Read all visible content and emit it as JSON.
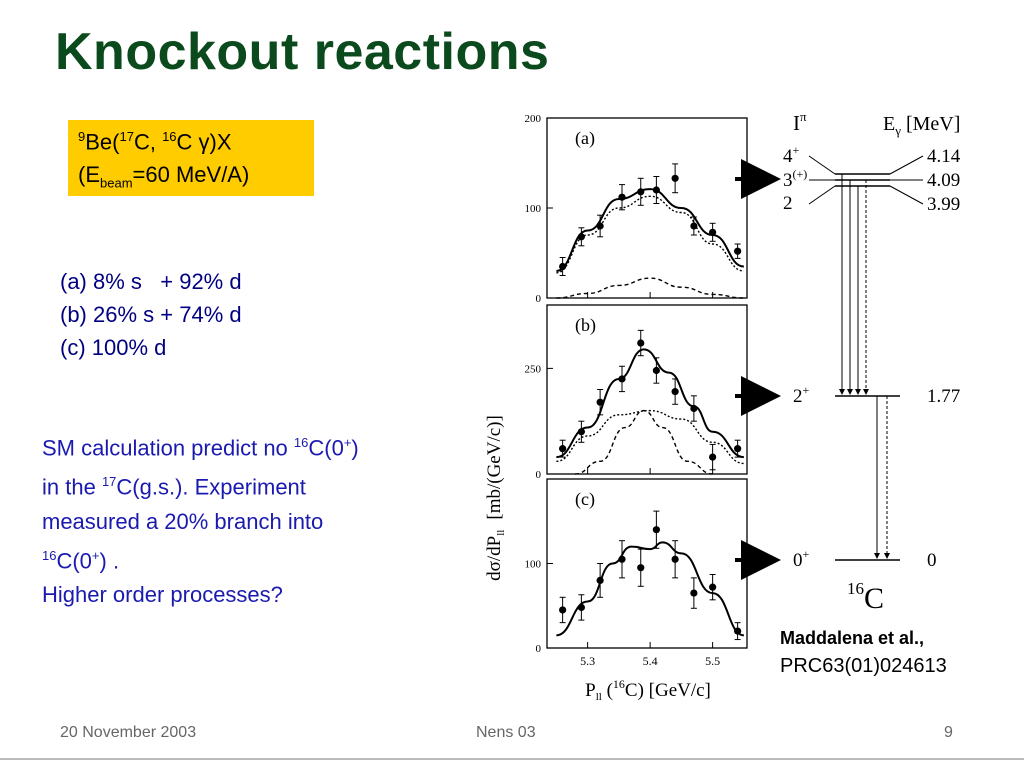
{
  "slide": {
    "title": "Knockout reactions",
    "reaction": {
      "be_mass": "9",
      "be": "Be(",
      "c17_mass": "17",
      "c17": "C, ",
      "c16_mass": "16",
      "c16": "C ",
      "gamma": "γ",
      "close": ")X",
      "ebeam_open": "(E",
      "ebeam_sub": "beam",
      "ebeam_value": "=60 MeV/A)"
    },
    "fractions": [
      "(a) 8% s   + 92% d",
      "(b) 26% s + 74% d",
      "(c) 100% d"
    ],
    "sm_text": {
      "line1_a": "SM calculation predict no ",
      "line1_sup": "16",
      "line1_b": "C(0",
      "line1_sup2": "+",
      "line1_c": ")",
      "line2_a": "in the ",
      "line2_sup": "17",
      "line2_b": "C(g.s.). Experiment",
      "line3": "measured a 20% branch into",
      "line4_sup": "16",
      "line4_a": "C(0",
      "line4_sup2": "+",
      "line4_b": ") .",
      "line5": "Higher order processes?"
    },
    "reference": {
      "author": "Maddalena et al.,",
      "journal": "PRC63(01)024613"
    },
    "footer": {
      "date": "20 November 2003",
      "event": "Nens 03",
      "page": "9"
    }
  },
  "chart_data": [
    {
      "type": "scatter",
      "panel": "(a)",
      "x": [
        5.26,
        5.29,
        5.32,
        5.355,
        5.385,
        5.41,
        5.44,
        5.47,
        5.5,
        5.54
      ],
      "y": [
        35,
        68,
        80,
        112,
        118,
        120,
        133,
        80,
        73,
        52
      ],
      "yerr": [
        10,
        10,
        12,
        14,
        15,
        15,
        16,
        10,
        10,
        8
      ],
      "curves": {
        "total": [
          [
            5.25,
            30
          ],
          [
            5.3,
            75
          ],
          [
            5.35,
            110
          ],
          [
            5.4,
            121
          ],
          [
            5.45,
            100
          ],
          [
            5.5,
            70
          ],
          [
            5.55,
            35
          ]
        ],
        "d": [
          [
            5.25,
            28
          ],
          [
            5.3,
            70
          ],
          [
            5.35,
            100
          ],
          [
            5.4,
            113
          ],
          [
            5.45,
            95
          ],
          [
            5.5,
            60
          ],
          [
            5.55,
            30
          ]
        ],
        "s": [
          [
            5.25,
            0
          ],
          [
            5.3,
            5
          ],
          [
            5.35,
            14
          ],
          [
            5.4,
            22
          ],
          [
            5.45,
            12
          ],
          [
            5.5,
            4
          ],
          [
            5.55,
            0
          ]
        ]
      },
      "ylim": [
        0,
        200
      ],
      "yticks": [
        "200",
        "100",
        "0"
      ],
      "ytick_values": [
        200,
        100,
        0
      ]
    },
    {
      "type": "scatter",
      "panel": "(b)",
      "x": [
        5.26,
        5.29,
        5.32,
        5.355,
        5.385,
        5.41,
        5.44,
        5.47,
        5.5,
        5.54
      ],
      "y": [
        60,
        100,
        170,
        225,
        310,
        245,
        195,
        155,
        40,
        60
      ],
      "yerr": [
        20,
        25,
        30,
        30,
        30,
        30,
        30,
        30,
        30,
        20
      ],
      "curves": {
        "total": [
          [
            5.25,
            40
          ],
          [
            5.3,
            110
          ],
          [
            5.35,
            225
          ],
          [
            5.39,
            295
          ],
          [
            5.43,
            240
          ],
          [
            5.47,
            160
          ],
          [
            5.5,
            100
          ],
          [
            5.55,
            40
          ]
        ],
        "d": [
          [
            5.25,
            30
          ],
          [
            5.3,
            90
          ],
          [
            5.35,
            140
          ],
          [
            5.4,
            150
          ],
          [
            5.45,
            130
          ],
          [
            5.5,
            75
          ],
          [
            5.55,
            25
          ]
        ],
        "s": [
          [
            5.28,
            0
          ],
          [
            5.32,
            30
          ],
          [
            5.36,
            110
          ],
          [
            5.39,
            150
          ],
          [
            5.42,
            110
          ],
          [
            5.46,
            30
          ],
          [
            5.5,
            0
          ]
        ]
      },
      "ylim": [
        0,
        400
      ],
      "yticks": [
        "250",
        "0"
      ],
      "ytick_values": [
        250,
        0
      ]
    },
    {
      "type": "scatter",
      "panel": "(c)",
      "x": [
        5.26,
        5.29,
        5.32,
        5.355,
        5.385,
        5.41,
        5.44,
        5.47,
        5.5,
        5.54
      ],
      "y": [
        45,
        48,
        80,
        105,
        95,
        140,
        105,
        65,
        72,
        20
      ],
      "yerr": [
        15,
        15,
        20,
        22,
        22,
        22,
        22,
        18,
        15,
        10
      ],
      "curves": {
        "total": [
          [
            5.25,
            15
          ],
          [
            5.3,
            55
          ],
          [
            5.34,
            100
          ],
          [
            5.37,
            120
          ],
          [
            5.4,
            117
          ],
          [
            5.42,
            125
          ],
          [
            5.45,
            112
          ],
          [
            5.5,
            65
          ],
          [
            5.55,
            15
          ]
        ]
      },
      "ylim": [
        0,
        200
      ],
      "yticks": [
        "100",
        "0"
      ],
      "ytick_values": [
        100,
        0
      ]
    }
  ],
  "chart_axes": {
    "xticks": [
      "5.3",
      "5.4",
      "5.5"
    ],
    "xtick_values": [
      5.3,
      5.4,
      5.5
    ],
    "xlim": [
      5.235,
      5.555
    ],
    "ylabel": "dσ/dP",
    "ylabel_sub": "ll",
    "ylabel_unit": "[mb/(GeV/c)]",
    "xlabel_p": "P",
    "xlabel_sub": "ll",
    "xlabel_open": " (",
    "xlabel_sup": "16",
    "xlabel_rest": "C) [GeV/c]"
  },
  "level_scheme": {
    "col_spin": "I",
    "col_spin_sup": "π",
    "col_energy": "E",
    "col_energy_sub": "γ",
    "col_energy_unit": " [MeV]",
    "levels": [
      {
        "spin": "4",
        "spin_sup": "+",
        "energy": "4.14"
      },
      {
        "spin": "3",
        "spin_sup": "(+)",
        "energy": "4.09"
      },
      {
        "spin": "2",
        "spin_sup": "",
        "energy": "3.99"
      },
      {
        "spin": "2",
        "spin_sup": "+",
        "energy": "1.77"
      },
      {
        "spin": "0",
        "spin_sup": "+",
        "energy": "0"
      }
    ],
    "nucleus_mass": "16",
    "nucleus": "C"
  }
}
